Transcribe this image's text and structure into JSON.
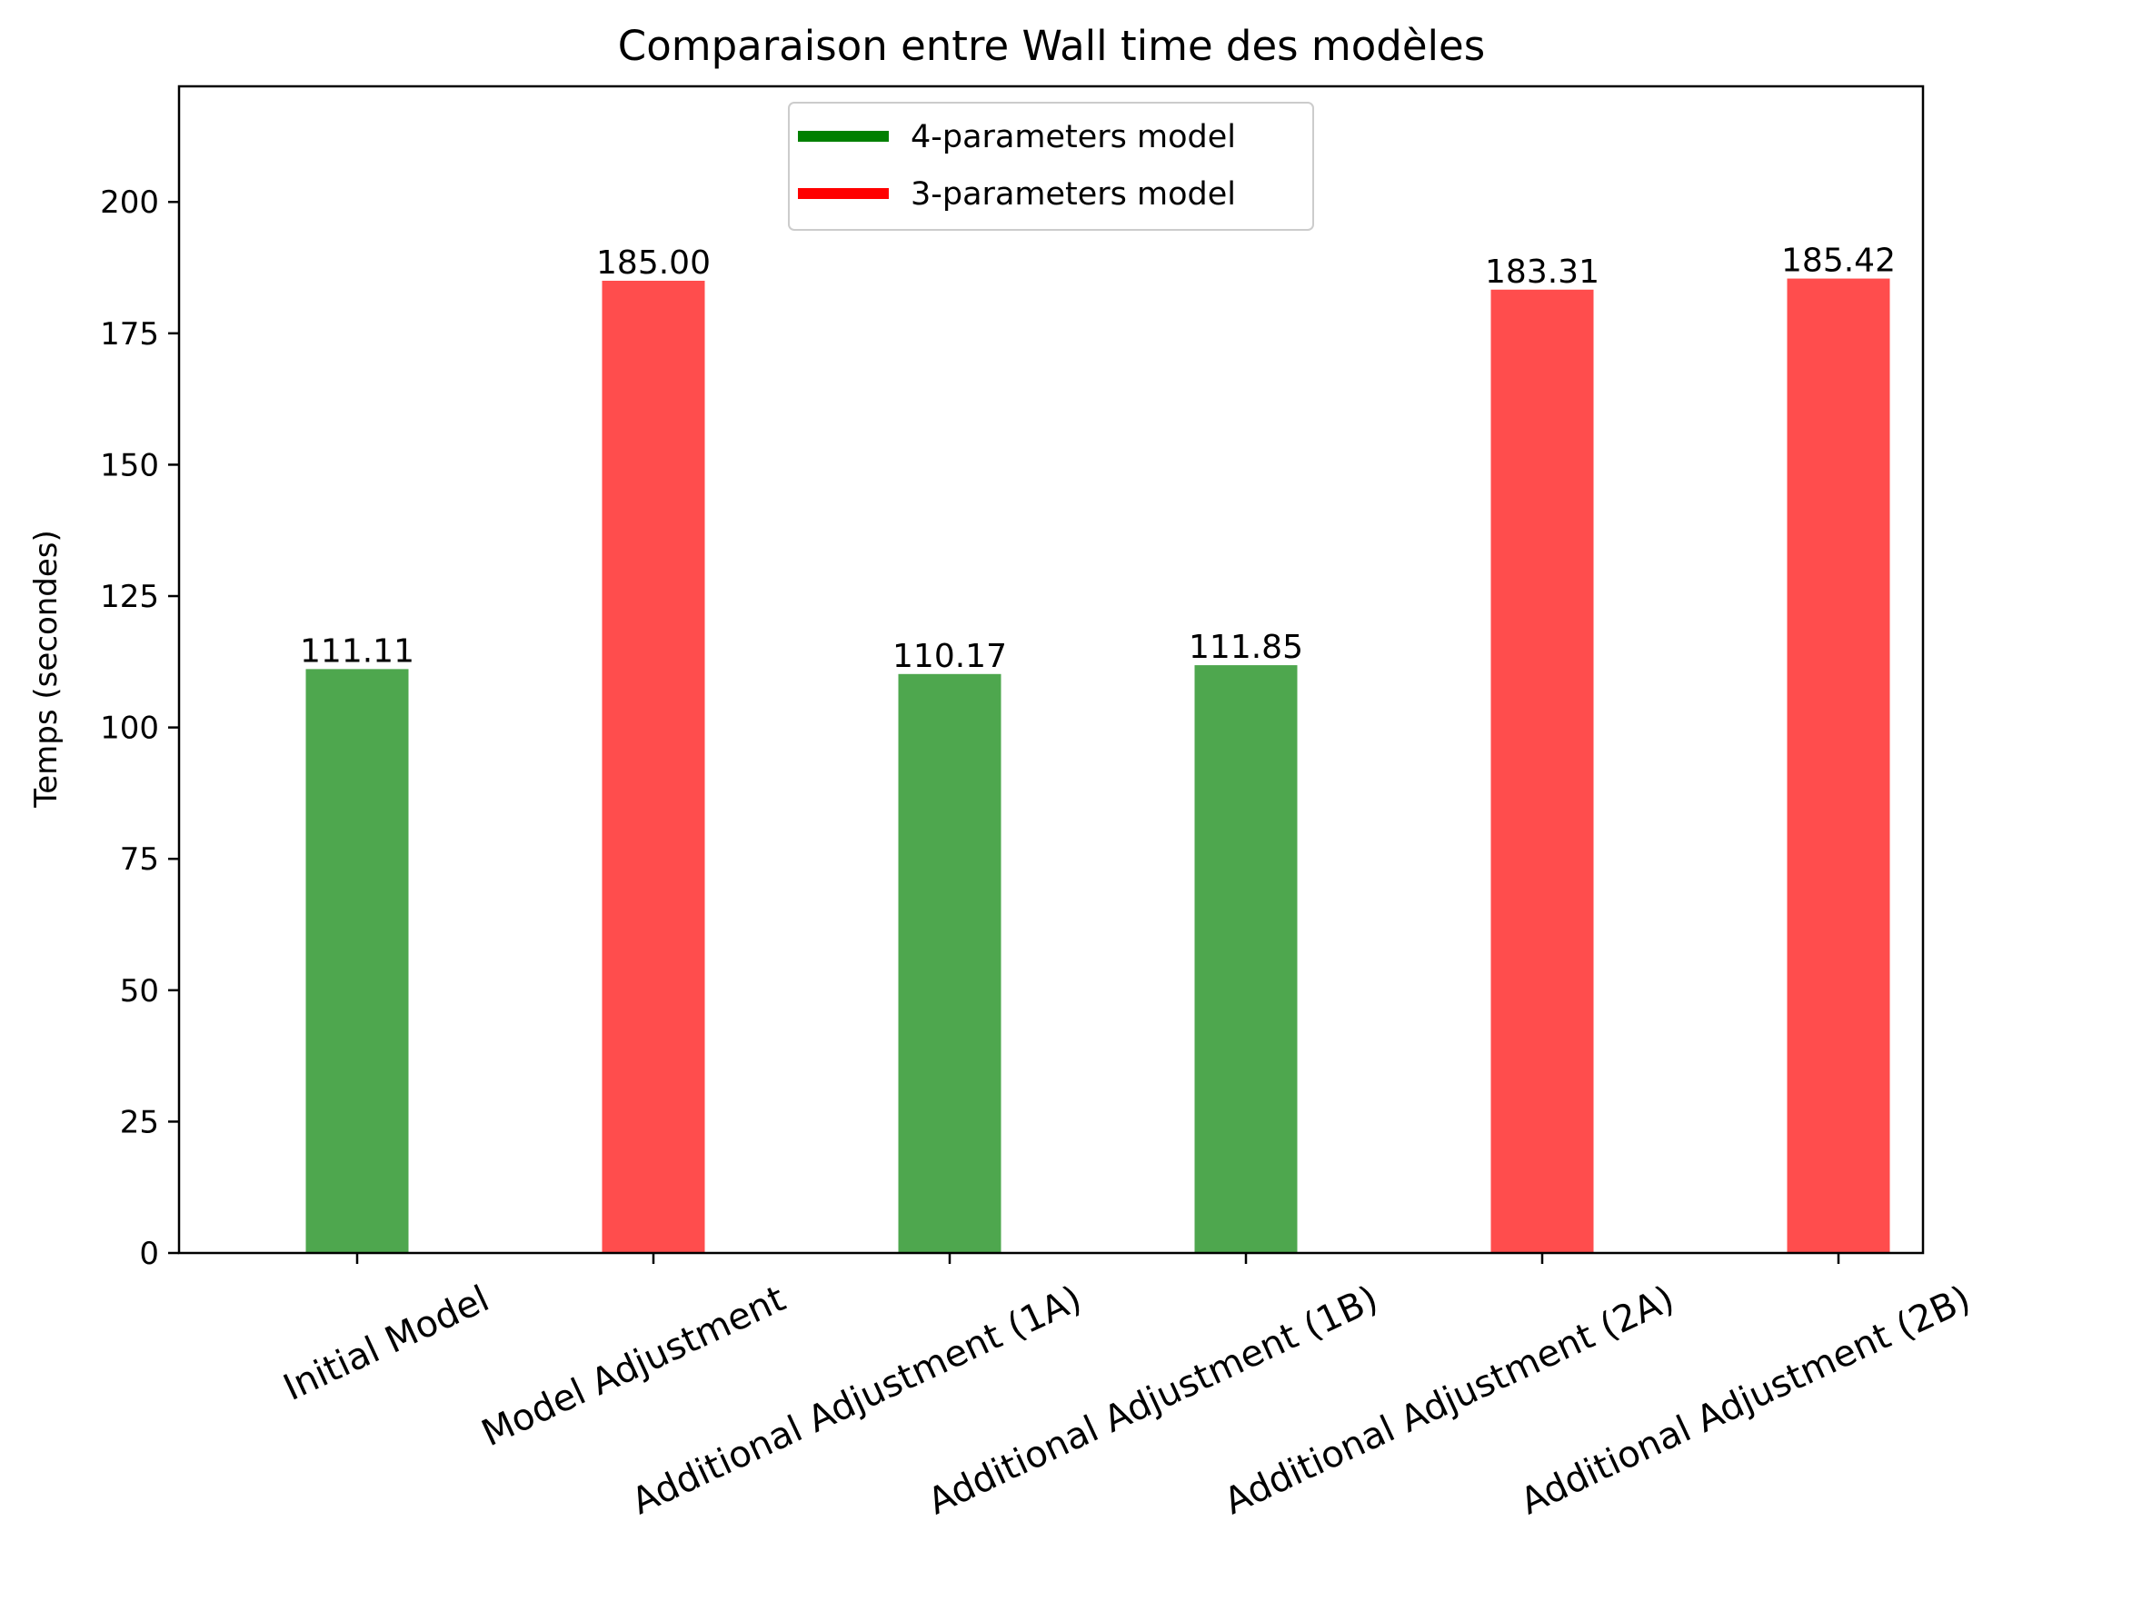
{
  "chart_data": {
    "type": "bar",
    "title": "Comparaison entre Wall time des modèles",
    "xlabel": "",
    "ylabel": "Temps (secondes)",
    "ylim": [
      0,
      222
    ],
    "yticks": [
      0,
      25,
      50,
      75,
      100,
      125,
      150,
      175,
      200
    ],
    "categories": [
      "Initial Model",
      "Model Adjustment",
      "Additional Adjustment (1A)",
      "Additional Adjustment (1B)",
      "Additional Adjustment (2A)",
      "Additional Adjustment (2B)"
    ],
    "values": [
      111.11,
      185.0,
      110.17,
      111.85,
      183.31,
      185.42
    ],
    "value_labels": [
      "111.11",
      "185.00",
      "110.17",
      "111.85",
      "183.31",
      "185.42"
    ],
    "bar_series": [
      "4-parameters model",
      "3-parameters model",
      "4-parameters model",
      "4-parameters model",
      "3-parameters model",
      "3-parameters model"
    ],
    "legend": {
      "placement": "upper-center",
      "entries": [
        {
          "label": "4-parameters model",
          "color": "#008000"
        },
        {
          "label": "3-parameters model",
          "color": "#ff0000"
        }
      ]
    },
    "bar_colors": {
      "4-parameters model": "#4ea74e",
      "3-parameters model": "#ff4d4d"
    },
    "grid": false
  }
}
